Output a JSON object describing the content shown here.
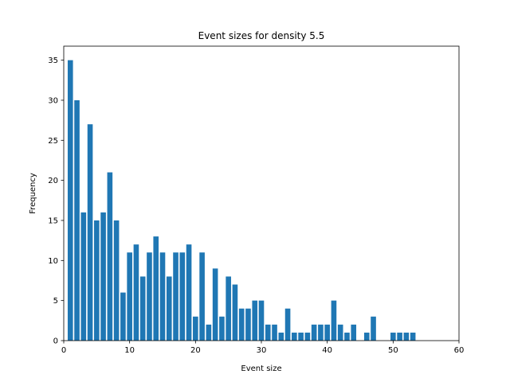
{
  "chart_data": {
    "type": "bar",
    "title": "Event sizes for density 5.5",
    "xlabel": "Event size",
    "ylabel": "Frequency",
    "xlim": [
      0,
      60
    ],
    "ylim": [
      0,
      36.75
    ],
    "xticks": [
      0,
      10,
      20,
      30,
      40,
      50,
      60
    ],
    "yticks": [
      0,
      5,
      10,
      15,
      20,
      25,
      30,
      35
    ],
    "grid": false,
    "bar_color": "#1f77b4",
    "x": [
      1,
      2,
      3,
      4,
      5,
      6,
      7,
      8,
      9,
      10,
      11,
      12,
      13,
      14,
      15,
      16,
      17,
      18,
      19,
      20,
      21,
      22,
      23,
      24,
      25,
      26,
      27,
      28,
      29,
      30,
      31,
      32,
      33,
      34,
      35,
      36,
      37,
      38,
      39,
      40,
      41,
      42,
      43,
      44,
      46,
      47,
      50,
      51,
      52,
      53
    ],
    "values": [
      35,
      30,
      16,
      27,
      15,
      16,
      21,
      15,
      6,
      11,
      12,
      8,
      11,
      13,
      11,
      8,
      11,
      11,
      12,
      3,
      11,
      2,
      9,
      3,
      8,
      7,
      4,
      4,
      5,
      5,
      2,
      2,
      1,
      4,
      1,
      1,
      1,
      2,
      2,
      2,
      5,
      2,
      1,
      2,
      1,
      3,
      1,
      1,
      1,
      1
    ]
  }
}
